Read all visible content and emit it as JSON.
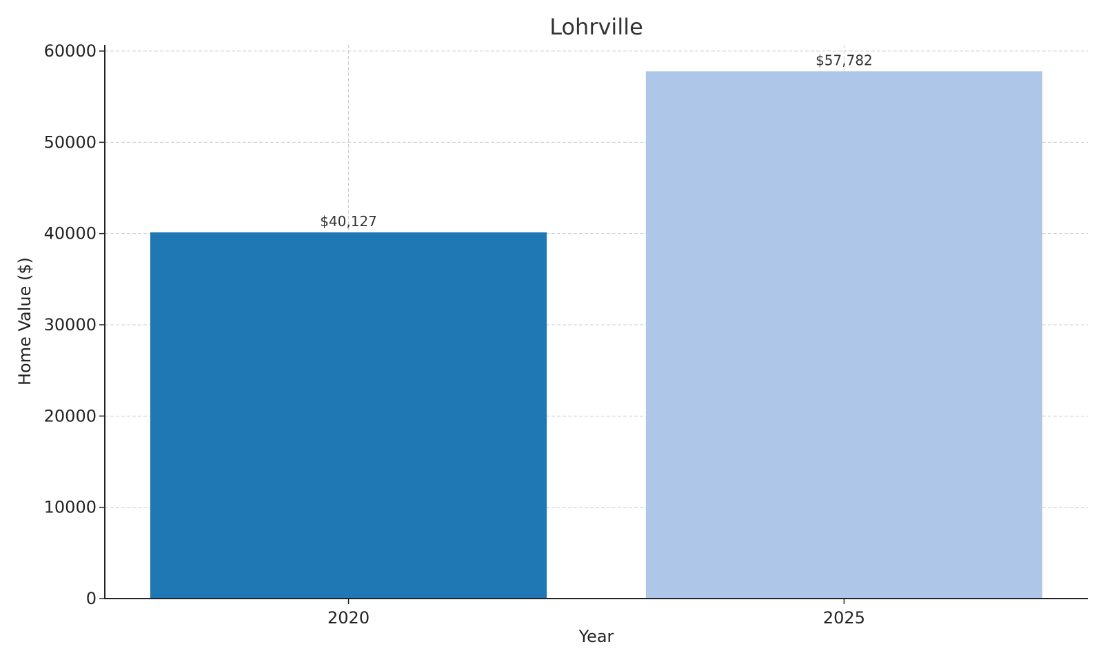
{
  "chart_data": {
    "type": "bar",
    "title": "Lohrville",
    "xlabel": "Year",
    "ylabel": "Home Value ($)",
    "categories": [
      "2020",
      "2025"
    ],
    "values": [
      40127,
      57782
    ],
    "data_labels": [
      "$40,127",
      "$57,782"
    ],
    "colors": [
      "#1f77b4",
      "#aec7e8"
    ],
    "ylim": [
      0,
      60000
    ],
    "yticks": [
      0,
      10000,
      20000,
      30000,
      40000,
      50000,
      60000
    ],
    "ytick_labels": [
      "0",
      "10000",
      "20000",
      "30000",
      "40000",
      "50000",
      "60000"
    ],
    "grid": true
  }
}
